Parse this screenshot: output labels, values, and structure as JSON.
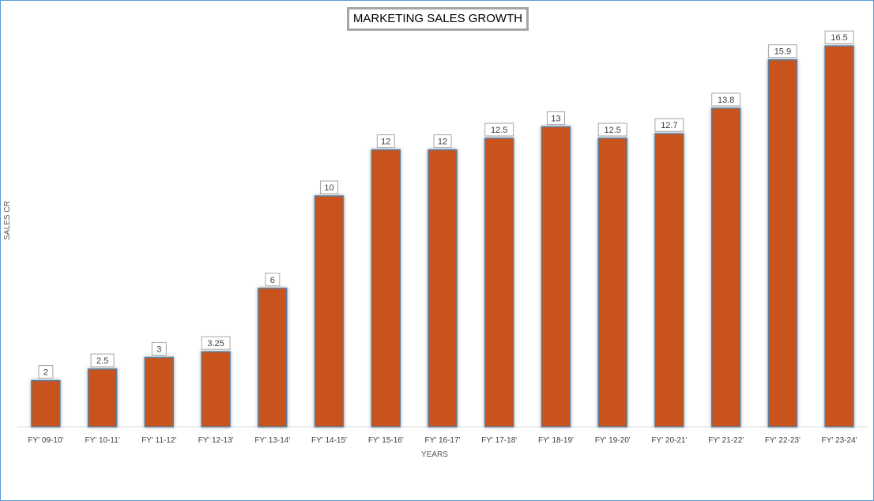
{
  "chart_data": {
    "type": "bar",
    "title": "MARKETING SALES GROWTH",
    "xlabel": "YEARS",
    "ylabel": "SALES CR",
    "categories": [
      "FY' 09-10'",
      "FY' 10-11'",
      "FY' 11-12'",
      "FY' 12-13'",
      "FY' 13-14'",
      "FY' 14-15'",
      "FY' 15-16'",
      "FY' 16-17'",
      "FY' 17-18'",
      "FY' 18-19'",
      "FY' 19-20'",
      "FY' 20-21'",
      "FY' 21-22'",
      "FY' 22-23'",
      "FY' 23-24'"
    ],
    "values": [
      2,
      2.5,
      3,
      3.25,
      6,
      10,
      12,
      12,
      12.5,
      13,
      12.5,
      12.7,
      13.8,
      15.9,
      16.5
    ],
    "data_labels": [
      "2",
      "2.5",
      "3",
      "3.25",
      "6",
      "10",
      "12",
      "12",
      "12.5",
      "13",
      "12.5",
      "12.7",
      "13.8",
      "15.9",
      "16.5"
    ],
    "ylim": [
      0,
      16.5
    ],
    "grid": false,
    "legend": "none",
    "colors": {
      "bar_fill": "#c9531a",
      "bar_edge": "#5a7fa0",
      "frame_border": "#5b9bd5",
      "title_border": "#a6a6a6",
      "axis_line": "#d9d9d9"
    }
  }
}
